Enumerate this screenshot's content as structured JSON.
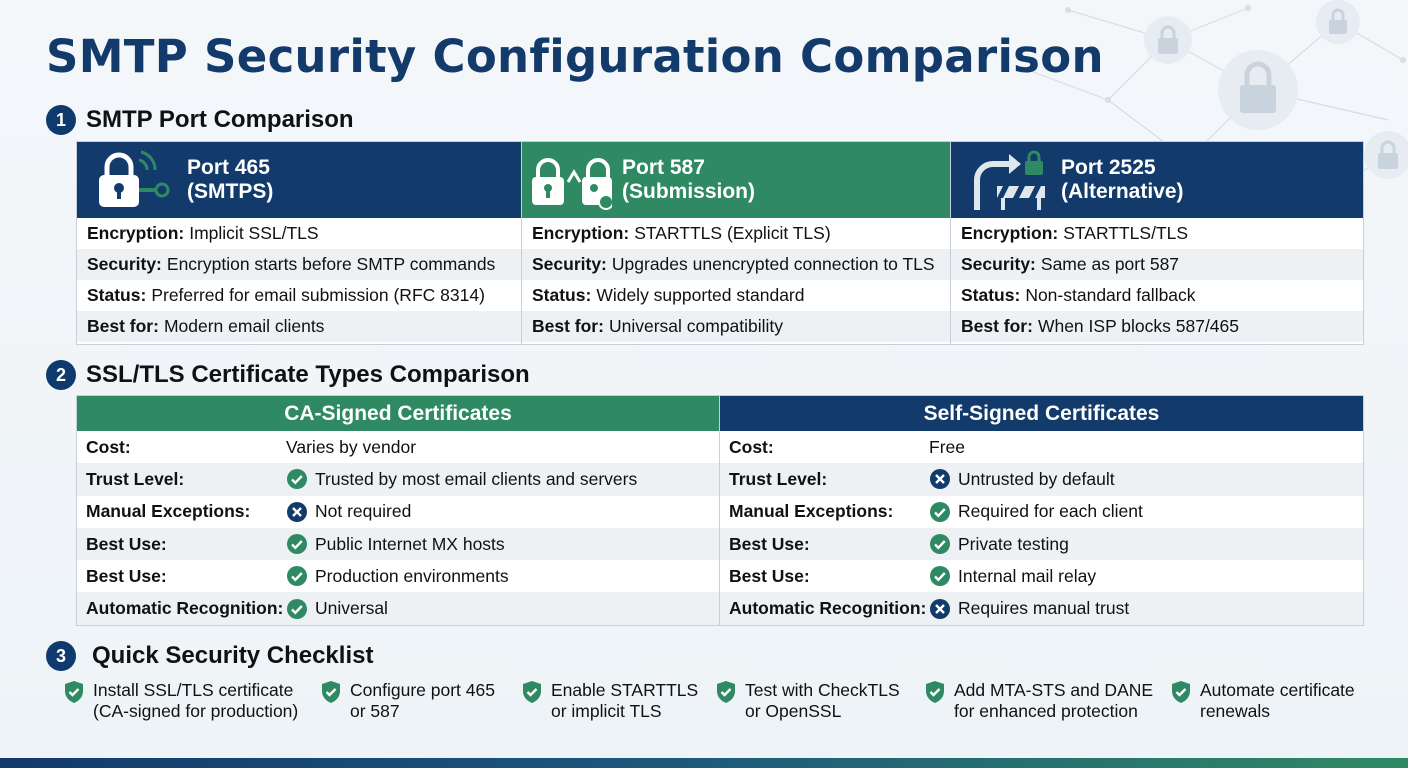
{
  "title": "SMTP Security Configuration Comparison",
  "sections": [
    {
      "number": "1",
      "title": "SMTP Port Comparison"
    },
    {
      "number": "2",
      "title": "SSL/TLS Certificate Types Comparison"
    },
    {
      "number": "3",
      "title": "Quick Security Checklist"
    }
  ],
  "ports": [
    {
      "icon": "lock-key-signal-icon",
      "title": "Port 465\n(SMTPS)",
      "rows": [
        {
          "k": "Encryption:",
          "v": "Implicit SSL/TLS"
        },
        {
          "k": "Security:",
          "v": "Encryption starts before SMTP commands"
        },
        {
          "k": "Status:",
          "v": "Preferred for email submission (RFC 8314)"
        },
        {
          "k": "Best for:",
          "v": "Modern email clients"
        }
      ]
    },
    {
      "icon": "lock-upgrade-icon",
      "title": "Port 587\n(Submission)",
      "rows": [
        {
          "k": "Encryption:",
          "v": "STARTTLS (Explicit TLS)"
        },
        {
          "k": "Security:",
          "v": "Upgrades unencrypted connection to TLS"
        },
        {
          "k": "Status:",
          "v": "Widely supported standard"
        },
        {
          "k": "Best for:",
          "v": "Universal compatibility"
        }
      ]
    },
    {
      "icon": "detour-barrier-icon",
      "title": "Port 2525\n(Alternative)",
      "rows": [
        {
          "k": "Encryption:",
          "v": "STARTTLS/TLS"
        },
        {
          "k": "Security:",
          "v": "Same as port 587"
        },
        {
          "k": "Status:",
          "v": "Non-standard fallback"
        },
        {
          "k": "Best for:",
          "v": "When ISP blocks 587/465"
        }
      ]
    }
  ],
  "certs": [
    {
      "title": "CA-Signed Certificates",
      "rows": [
        {
          "k": "Cost:",
          "v": "Varies by vendor",
          "icon": "none"
        },
        {
          "k": "Trust Level:",
          "v": "Trusted by most email clients and servers",
          "icon": "check"
        },
        {
          "k": "Manual Exceptions:",
          "v": "Not required",
          "icon": "x"
        },
        {
          "k": "Best Use:",
          "v": "Public Internet MX hosts",
          "icon": "check"
        },
        {
          "k": "Best Use:",
          "v": "Production environments",
          "icon": "check"
        },
        {
          "k": "Automatic Recognition:",
          "v": "Universal",
          "icon": "check"
        }
      ]
    },
    {
      "title": "Self-Signed Certificates",
      "rows": [
        {
          "k": "Cost:",
          "v": "Free",
          "icon": "none"
        },
        {
          "k": "Trust Level:",
          "v": "Untrusted by default",
          "icon": "x"
        },
        {
          "k": "Manual Exceptions:",
          "v": "Required for each client",
          "icon": "check"
        },
        {
          "k": "Best Use:",
          "v": "Private testing",
          "icon": "check"
        },
        {
          "k": "Best Use:",
          "v": "Internal mail relay",
          "icon": "check"
        },
        {
          "k": "Automatic Recognition:",
          "v": "Requires manual trust",
          "icon": "x"
        }
      ]
    }
  ],
  "checklist": [
    "Install SSL/TLS certificate\n(CA-signed for production)",
    "Configure port 465\nor 587",
    "Enable STARTTLS\nor implicit TLS",
    "Test with CheckTLS\nor OpenSSL",
    "Add MTA-STS and DANE\nfor enhanced protection",
    "Automate certificate\nrenewals"
  ],
  "colors": {
    "navy": "#123a6b",
    "green": "#2f8a64",
    "check": "#2f8a64",
    "x": "#123a6b"
  }
}
